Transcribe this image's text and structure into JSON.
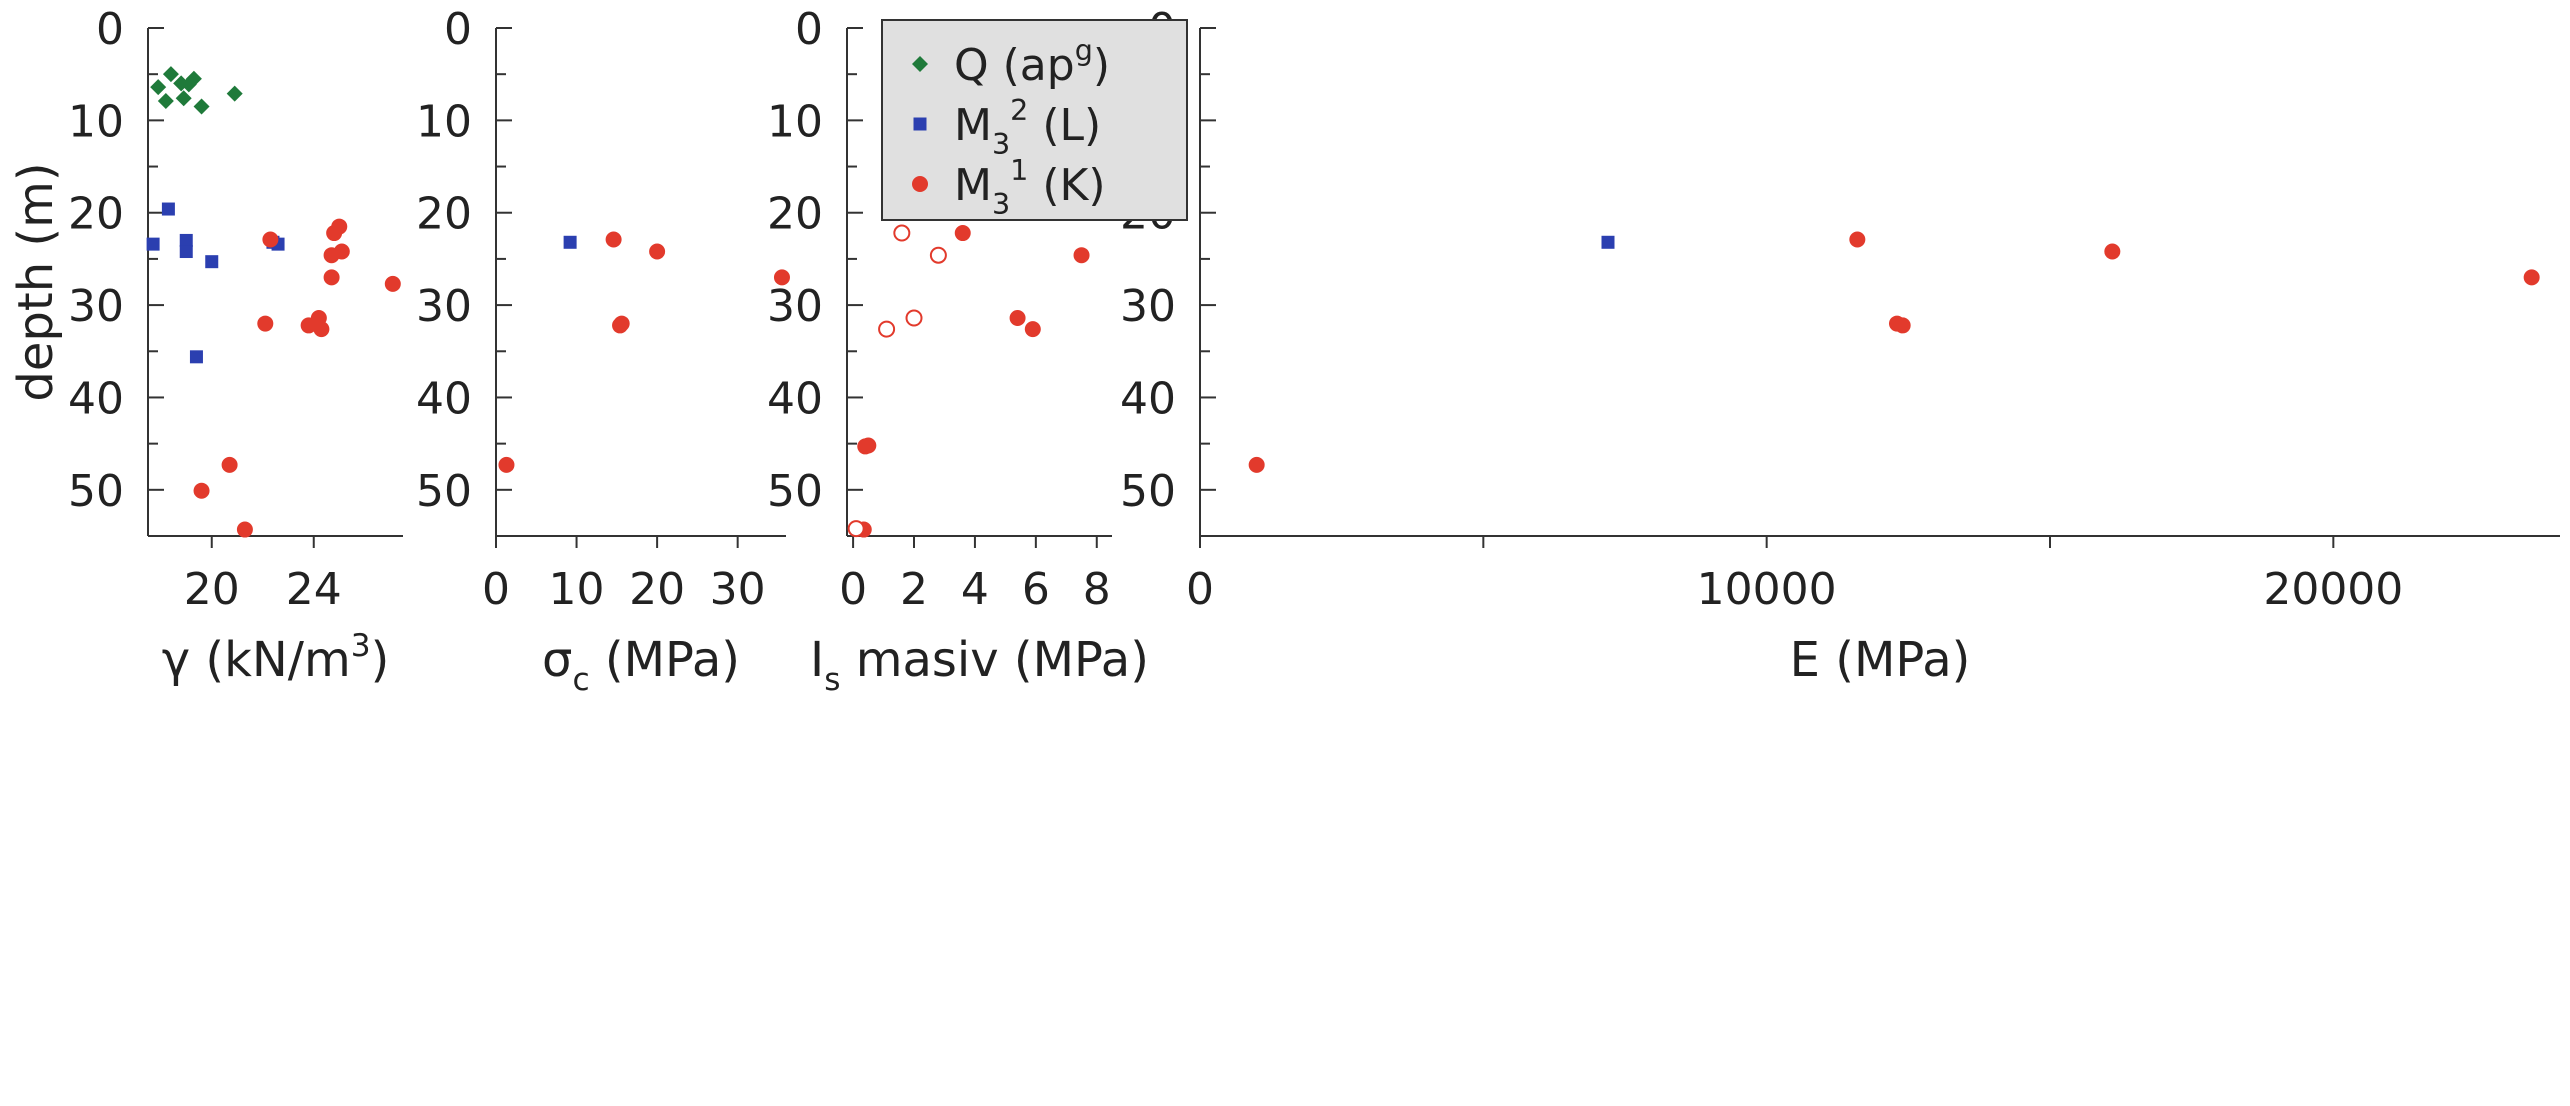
{
  "colors": {
    "Q": "#1f7a3a",
    "M3_2": "#2b3fb0",
    "M3_1": "#e23a2c",
    "axis": "#333333",
    "legend_bg": "#e0e0e0"
  },
  "legend": {
    "items": [
      {
        "key": "Q",
        "marker": "diamond",
        "base": "Q (ap",
        "sup": "g",
        "post": ")"
      },
      {
        "key": "M3_2",
        "marker": "square",
        "base": "M",
        "sub": "3",
        "sup": "2",
        "post": " (L)"
      },
      {
        "key": "M3_1",
        "marker": "circle",
        "base": "M",
        "sub": "3",
        "sup": "1",
        "post": " (K)"
      }
    ]
  },
  "y_axis": {
    "label": "depth (m)",
    "ylim": [
      0,
      55
    ],
    "ticks": [
      0,
      10,
      20,
      30,
      40,
      50
    ],
    "tick_labels": [
      "0",
      "10",
      "20",
      "30",
      "40",
      "50"
    ],
    "inverted": true
  },
  "chart_data": [
    {
      "type": "scatter",
      "xlabel": {
        "base": "γ (kN/m",
        "sup": "3",
        "post": ")"
      },
      "xlim": [
        17.5,
        27.5
      ],
      "xticks": [
        20,
        24
      ],
      "xtick_labels": [
        "20",
        "24"
      ],
      "series": [
        {
          "key": "Q",
          "marker": "diamond",
          "points": [
            [
              17.9,
              6.4
            ],
            [
              18.4,
              5.0
            ],
            [
              18.8,
              6.0
            ],
            [
              19.3,
              5.5
            ],
            [
              18.2,
              7.9
            ],
            [
              19.1,
              6.1
            ],
            [
              18.9,
              7.6
            ],
            [
              19.6,
              8.5
            ],
            [
              20.9,
              7.1
            ]
          ]
        },
        {
          "key": "M3_2",
          "marker": "square",
          "points": [
            [
              18.3,
              19.6
            ],
            [
              17.7,
              23.4
            ],
            [
              19.0,
              23.0
            ],
            [
              19.0,
              24.2
            ],
            [
              20.0,
              25.3
            ],
            [
              22.6,
              23.4
            ],
            [
              22.4,
              23.2
            ],
            [
              19.4,
              35.6
            ]
          ]
        },
        {
          "key": "M3_1",
          "marker": "circle",
          "points": [
            [
              22.3,
              22.9
            ],
            [
              25.0,
              21.5
            ],
            [
              24.8,
              22.2
            ],
            [
              25.1,
              24.2
            ],
            [
              24.7,
              24.6
            ],
            [
              24.7,
              27.0
            ],
            [
              27.1,
              27.7
            ],
            [
              22.1,
              32.0
            ],
            [
              23.8,
              32.2
            ],
            [
              24.2,
              31.4
            ],
            [
              24.3,
              32.6
            ],
            [
              20.7,
              47.3
            ],
            [
              19.6,
              50.1
            ],
            [
              21.3,
              54.3
            ]
          ]
        }
      ]
    },
    {
      "type": "scatter",
      "xlabel": {
        "base": "σ",
        "sub": "c",
        "post": " (MPa)"
      },
      "xlim": [
        0,
        36
      ],
      "xticks": [
        0,
        10,
        20,
        30
      ],
      "xtick_labels": [
        "0",
        "10",
        "20",
        "30"
      ],
      "series": [
        {
          "key": "M3_2",
          "marker": "square",
          "points": [
            [
              9.2,
              23.2
            ]
          ]
        },
        {
          "key": "M3_1",
          "marker": "circle",
          "points": [
            [
              14.6,
              22.9
            ],
            [
              20.0,
              24.2
            ],
            [
              15.4,
              32.2
            ],
            [
              15.6,
              32.0
            ],
            [
              35.5,
              27.0
            ],
            [
              1.3,
              47.3
            ]
          ]
        }
      ]
    },
    {
      "type": "scatter",
      "xlabel": {
        "base": "I",
        "sub": "s",
        "post": " masiv (MPa)"
      },
      "xlim": [
        -0.2,
        8.5
      ],
      "xticks": [
        0,
        2,
        4,
        6,
        8
      ],
      "xtick_labels": [
        "0",
        "2",
        "4",
        "6",
        "8"
      ],
      "series": [
        {
          "key": "M3_1",
          "marker": "circle",
          "points": [
            [
              3.6,
              22.2
            ],
            [
              7.5,
              24.6
            ],
            [
              5.4,
              31.4
            ],
            [
              5.9,
              32.6
            ],
            [
              0.4,
              45.3
            ],
            [
              0.5,
              45.2
            ],
            [
              0.35,
              54.3
            ]
          ]
        },
        {
          "key": "M3_1_open",
          "marker": "circle-open",
          "points": [
            [
              1.6,
              22.2
            ],
            [
              2.8,
              24.6
            ],
            [
              2.0,
              31.4
            ],
            [
              1.1,
              32.6
            ],
            [
              0.1,
              54.2
            ]
          ]
        }
      ]
    },
    {
      "type": "scatter",
      "xlabel": {
        "base": "E  (MPa)"
      },
      "xlim": [
        0,
        24000
      ],
      "xticks": [
        0,
        10000,
        20000
      ],
      "xtick_labels": [
        "0",
        "10000",
        "20000"
      ],
      "minor_xticks": [
        5000,
        15000
      ],
      "series": [
        {
          "key": "M3_2",
          "marker": "square",
          "points": [
            [
              7200,
              23.2
            ]
          ]
        },
        {
          "key": "M3_1",
          "marker": "circle",
          "points": [
            [
              11600,
              22.9
            ],
            [
              16100,
              24.2
            ],
            [
              12300,
              32.0
            ],
            [
              12400,
              32.2
            ],
            [
              23500,
              27.0
            ],
            [
              1000,
              47.3
            ]
          ]
        }
      ]
    }
  ]
}
